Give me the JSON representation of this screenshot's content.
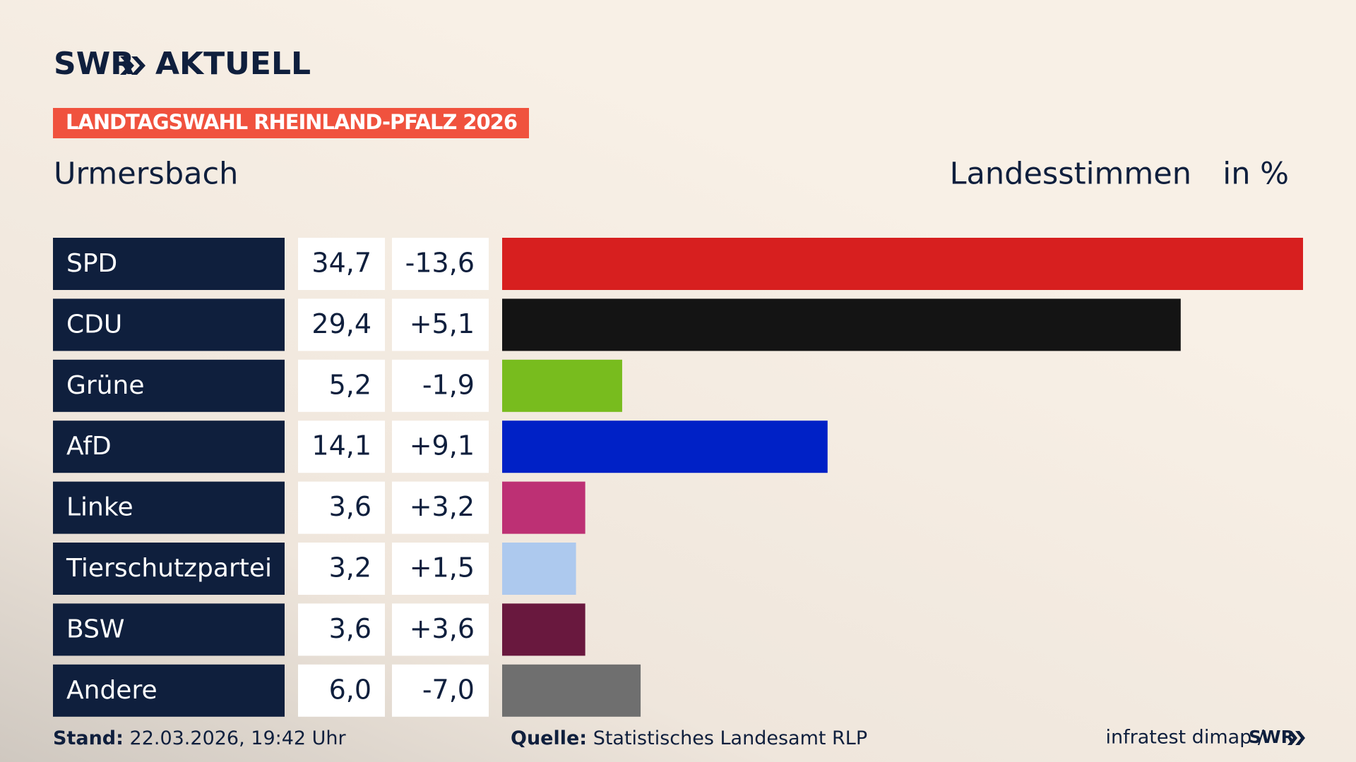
{
  "header": {
    "brand": "SWR",
    "product": "AKTUELL"
  },
  "chart_data": {
    "type": "bar",
    "title": "Urmersbach",
    "subtitle": "LANDTAGSWAHL RHEINLAND-PFALZ 2026",
    "measure": "Landesstimmen",
    "unit": "in %",
    "categories": [
      "SPD",
      "CDU",
      "Grüne",
      "AfD",
      "Linke",
      "Tierschutzpartei",
      "BSW",
      "Andere"
    ],
    "values": [
      34.7,
      29.4,
      5.2,
      14.1,
      3.6,
      3.2,
      3.6,
      6.0
    ],
    "value_labels": [
      "34,7",
      "29,4",
      "5,2",
      "14,1",
      "3,6",
      "3,2",
      "3,6",
      "6,0"
    ],
    "changes": [
      -13.6,
      5.1,
      -1.9,
      9.1,
      3.2,
      1.5,
      3.6,
      -7.0
    ],
    "change_labels": [
      "-13,6",
      "+5,1",
      "-1,9",
      "+9,1",
      "+3,2",
      "+1,5",
      "+3,6",
      "-7,0"
    ],
    "colors": [
      "#d71f1f",
      "#141414",
      "#78bc1e",
      "#0021c6",
      "#bd3074",
      "#adc9ee",
      "#69183e",
      "#6f6f6f"
    ]
  },
  "footer": {
    "stand_label": "Stand:",
    "stand": "22.03.2026, 19:42 Uhr",
    "source_label": "Quelle:",
    "source": "Statistisches Landesamt RLP",
    "credit": "infratest dimap /",
    "credit_brand": "SWR"
  }
}
